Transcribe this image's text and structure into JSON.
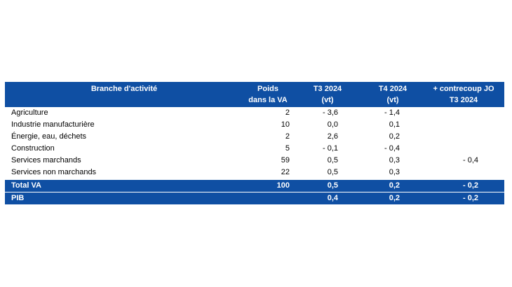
{
  "table": {
    "headers": {
      "branch": "Branche d'activité",
      "poids_line1": "Poids",
      "poids_line2": "dans la VA",
      "t3_line1": "T3 2024",
      "t3_line2": "(vt)",
      "t4_line1": "T4 2024",
      "t4_line2": "(vt)",
      "jo_line1": "+ contrecoup JO",
      "jo_line2": "T3 2024"
    },
    "rows": [
      {
        "branch": "Agriculture",
        "poids": "2",
        "t3": "- 3,6",
        "t4": "- 1,4",
        "jo": ""
      },
      {
        "branch": "Industrie manufacturière",
        "poids": "10",
        "t3": "0,0",
        "t4": "0,1",
        "jo": ""
      },
      {
        "branch": "Énergie, eau, déchets",
        "poids": "2",
        "t3": "2,6",
        "t4": "0,2",
        "jo": ""
      },
      {
        "branch": "Construction",
        "poids": "5",
        "t3": "- 0,1",
        "t4": "- 0,4",
        "jo": ""
      },
      {
        "branch": "Services marchands",
        "poids": "59",
        "t3": "0,5",
        "t4": "0,3",
        "jo": "- 0,4"
      },
      {
        "branch": "Services non marchands",
        "poids": "22",
        "t3": "0,5",
        "t4": "0,3",
        "jo": ""
      }
    ],
    "totals": [
      {
        "branch": "Total VA",
        "poids": "100",
        "t3": "0,5",
        "t4": "0,2",
        "jo": "- 0,2"
      },
      {
        "branch": "PIB",
        "poids": "",
        "t3": "0,4",
        "t4": "0,2",
        "jo": "- 0,2"
      }
    ]
  },
  "colors": {
    "header_bg": "#0f4fa3",
    "header_text": "#ffffff"
  }
}
